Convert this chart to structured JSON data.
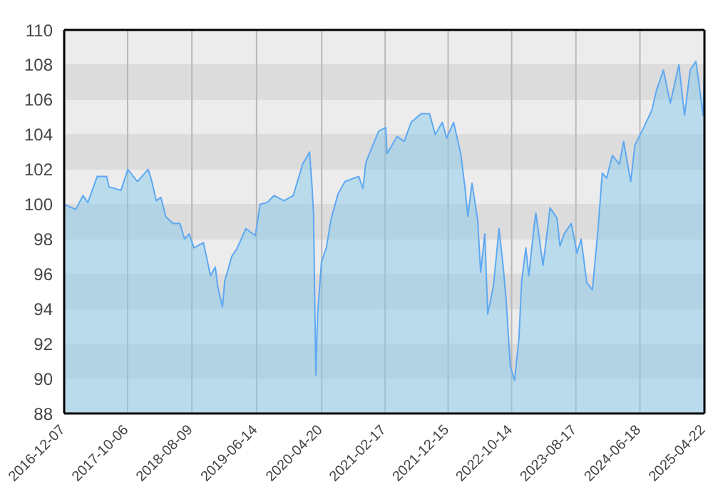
{
  "chart_data": {
    "type": "area",
    "xlim": [
      "2016-12-07",
      "2025-04-22"
    ],
    "xticks": [
      "2016-12-07",
      "2017-10-06",
      "2018-08-09",
      "2019-06-14",
      "2020-04-20",
      "2021-02-17",
      "2021-12-15",
      "2022-10-14",
      "2023-08-17",
      "2024-06-18",
      "2025-04-22"
    ],
    "ylim": [
      88,
      110
    ],
    "yticks": [
      88,
      90,
      92,
      94,
      96,
      98,
      100,
      102,
      104,
      106,
      108,
      110
    ],
    "grid": true,
    "x": [
      "2016-12-07",
      "2017-02-01",
      "2017-03-07",
      "2017-03-30",
      "2017-05-14",
      "2017-06-28",
      "2017-07-09",
      "2017-09-04",
      "2017-10-07",
      "2017-11-22",
      "2017-12-14",
      "2018-01-12",
      "2018-01-28",
      "2018-02-20",
      "2018-03-14",
      "2018-04-06",
      "2018-05-10",
      "2018-06-13",
      "2018-07-05",
      "2018-07-27",
      "2018-08-19",
      "2018-10-03",
      "2018-11-06",
      "2018-11-29",
      "2018-12-10",
      "2019-01-02",
      "2019-01-13",
      "2019-02-15",
      "2019-03-10",
      "2019-04-24",
      "2019-06-08",
      "2019-07-01",
      "2019-08-03",
      "2019-09-06",
      "2019-10-22",
      "2019-12-06",
      "2020-01-20",
      "2020-02-22",
      "2020-03-05",
      "2020-03-12",
      "2020-03-23",
      "2020-04-01",
      "2020-04-19",
      "2020-05-12",
      "2020-06-03",
      "2020-07-07",
      "2020-08-09",
      "2020-10-14",
      "2020-11-03",
      "2020-11-17",
      "2021-01-17",
      "2021-02-20",
      "2021-02-26",
      "2021-04-15",
      "2021-05-19",
      "2021-06-21",
      "2021-08-08",
      "2021-09-17",
      "2021-10-14",
      "2021-11-17",
      "2021-12-08",
      "2022-01-10",
      "2022-02-13",
      "2022-03-05",
      "2022-03-19",
      "2022-04-08",
      "2022-05-05",
      "2022-05-19",
      "2022-06-08",
      "2022-06-22",
      "2022-07-19",
      "2022-08-15",
      "2022-09-04",
      "2022-09-18",
      "2022-10-08",
      "2022-10-28",
      "2022-11-18",
      "2022-12-01",
      "2022-12-21",
      "2023-01-04",
      "2023-01-31",
      "2023-02-07",
      "2023-03-13",
      "2023-04-09",
      "2023-04-15",
      "2023-05-19",
      "2023-06-02",
      "2023-06-22",
      "2023-07-26",
      "2023-08-22",
      "2023-09-11",
      "2023-10-08",
      "2023-11-04",
      "2023-12-01",
      "2023-12-21",
      "2024-01-11",
      "2024-02-07",
      "2024-03-12",
      "2024-04-01",
      "2024-05-05",
      "2024-05-25",
      "2024-06-28",
      "2024-08-14",
      "2024-09-04",
      "2024-10-08",
      "2024-11-10",
      "2024-12-21",
      "2025-01-17",
      "2025-02-13",
      "2025-03-12",
      "2025-03-26",
      "2025-04-15",
      "2025-04-22"
    ],
    "series": [
      {
        "color": "#5ea8f2",
        "values": [
          100.0,
          99.7,
          100.5,
          100.1,
          101.6,
          101.6,
          101.0,
          100.8,
          102.0,
          101.3,
          101.6,
          102.0,
          101.4,
          100.2,
          100.4,
          99.3,
          98.9,
          98.9,
          98.0,
          98.3,
          97.5,
          97.8,
          95.9,
          96.4,
          95.3,
          94.1,
          95.6,
          97.0,
          97.4,
          98.6,
          98.2,
          100.0,
          100.1,
          100.5,
          100.2,
          100.5,
          102.3,
          103.0,
          101.0,
          99.4,
          90.2,
          93.8,
          96.7,
          97.5,
          99.1,
          100.6,
          101.3,
          101.6,
          100.9,
          102.4,
          104.2,
          104.4,
          102.9,
          103.9,
          103.6,
          104.7,
          105.2,
          105.2,
          104.0,
          104.7,
          103.8,
          104.7,
          102.9,
          101.0,
          99.3,
          101.2,
          99.1,
          96.1,
          98.3,
          93.7,
          95.3,
          98.6,
          96.4,
          94.5,
          90.7,
          89.9,
          92.3,
          95.6,
          97.5,
          95.9,
          98.9,
          99.5,
          96.5,
          99.1,
          99.8,
          99.2,
          97.6,
          98.3,
          98.9,
          97.2,
          98.0,
          95.5,
          95.1,
          98.6,
          101.8,
          101.5,
          102.8,
          102.3,
          103.6,
          101.3,
          103.4,
          104.2,
          105.4,
          106.5,
          107.7,
          105.8,
          108.0,
          105.1,
          107.7,
          108.2,
          107.0,
          105.1,
          107.6
        ]
      }
    ]
  }
}
